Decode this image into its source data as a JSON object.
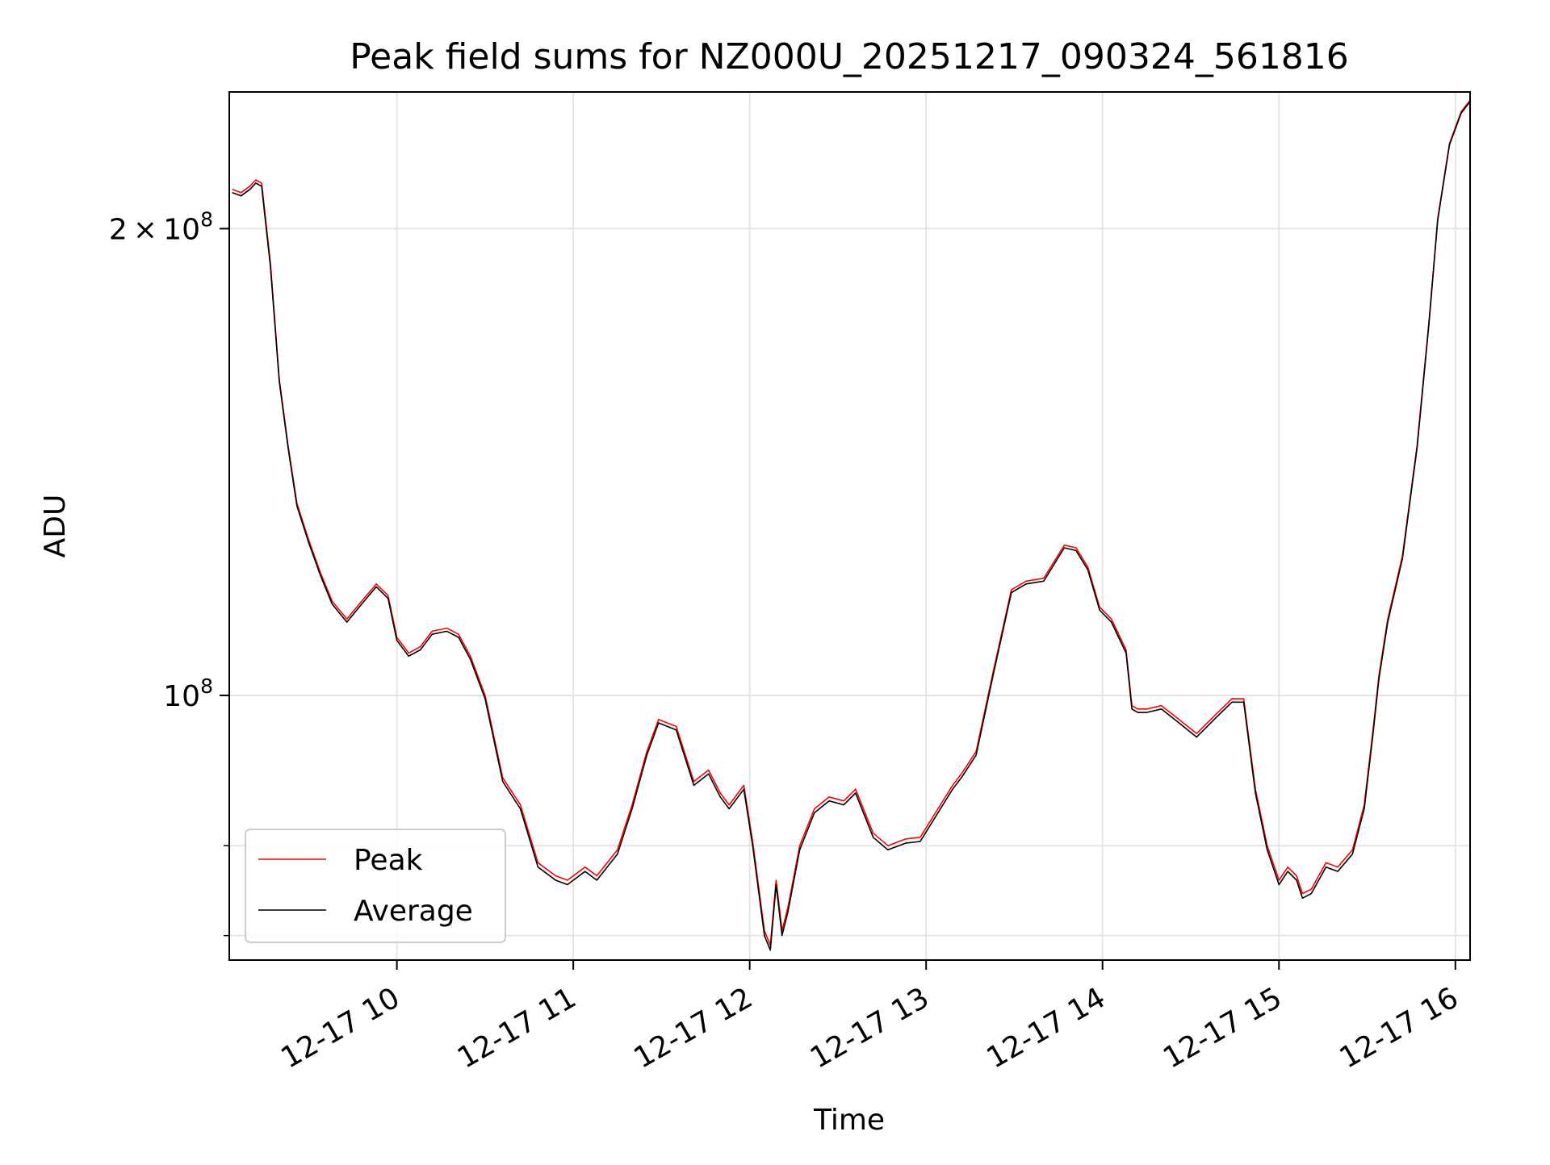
{
  "chart_data": {
    "type": "line",
    "title": "Peak field sums for NZ000U_20251217_090324_561816",
    "xlabel": "Time",
    "ylabel": "ADU",
    "yscale": "log",
    "ylim": [
      67500000,
      245000000
    ],
    "xlim": [
      "2025-12-17 09:03",
      "2025-12-17 16:05"
    ],
    "x_ticks": [
      {
        "value": "2025-12-17 10:00",
        "label": "12-17 10"
      },
      {
        "value": "2025-12-17 11:00",
        "label": "12-17 11"
      },
      {
        "value": "2025-12-17 12:00",
        "label": "12-17 12"
      },
      {
        "value": "2025-12-17 13:00",
        "label": "12-17 13"
      },
      {
        "value": "2025-12-17 14:00",
        "label": "12-17 14"
      },
      {
        "value": "2025-12-17 15:00",
        "label": "12-17 15"
      },
      {
        "value": "2025-12-17 16:00",
        "label": "12-17 16"
      }
    ],
    "y_major_ticks": [
      {
        "value": 100000000,
        "base": "10",
        "exp": "8",
        "label": "10^8"
      },
      {
        "value": 200000000,
        "mant": "2",
        "base": "10",
        "exp": "8",
        "label": "2×10^8"
      }
    ],
    "y_minor_ticks": [
      70000000,
      80000000,
      300000000
    ],
    "grid": true,
    "legend": {
      "position": "lower-left",
      "entries": [
        "Peak",
        "Average"
      ]
    },
    "series": [
      {
        "name": "Peak",
        "color": "#ff0000",
        "x": [
          "2025-12-17 09:04",
          "2025-12-17 09:07",
          "2025-12-17 09:10",
          "2025-12-17 09:12",
          "2025-12-17 09:14",
          "2025-12-17 09:17",
          "2025-12-17 09:20",
          "2025-12-17 09:23",
          "2025-12-17 09:26",
          "2025-12-17 09:30",
          "2025-12-17 09:34",
          "2025-12-17 09:38",
          "2025-12-17 09:43",
          "2025-12-17 09:48",
          "2025-12-17 09:53",
          "2025-12-17 09:57",
          "2025-12-17 10:00",
          "2025-12-17 10:04",
          "2025-12-17 10:08",
          "2025-12-17 10:12",
          "2025-12-17 10:17",
          "2025-12-17 10:21",
          "2025-12-17 10:25",
          "2025-12-17 10:30",
          "2025-12-17 10:36",
          "2025-12-17 10:42",
          "2025-12-17 10:48",
          "2025-12-17 10:54",
          "2025-12-17 10:58",
          "2025-12-17 11:04",
          "2025-12-17 11:08",
          "2025-12-17 11:15",
          "2025-12-17 11:20",
          "2025-12-17 11:25",
          "2025-12-17 11:29",
          "2025-12-17 11:35",
          "2025-12-17 11:41",
          "2025-12-17 11:46",
          "2025-12-17 11:50",
          "2025-12-17 11:53",
          "2025-12-17 11:58",
          "2025-12-17 12:01",
          "2025-12-17 12:05",
          "2025-12-17 12:07",
          "2025-12-17 12:09",
          "2025-12-17 12:11",
          "2025-12-17 12:13",
          "2025-12-17 12:17",
          "2025-12-17 12:22",
          "2025-12-17 12:27",
          "2025-12-17 12:32",
          "2025-12-17 12:36",
          "2025-12-17 12:42",
          "2025-12-17 12:47",
          "2025-12-17 12:53",
          "2025-12-17 12:58",
          "2025-12-17 13:04",
          "2025-12-17 13:09",
          "2025-12-17 13:12",
          "2025-12-17 13:17",
          "2025-12-17 13:23",
          "2025-12-17 13:29",
          "2025-12-17 13:34",
          "2025-12-17 13:40",
          "2025-12-17 13:47",
          "2025-12-17 13:51",
          "2025-12-17 13:55",
          "2025-12-17 13:59",
          "2025-12-17 14:03",
          "2025-12-17 14:08",
          "2025-12-17 14:10",
          "2025-12-17 14:12",
          "2025-12-17 14:15",
          "2025-12-17 14:20",
          "2025-12-17 14:26",
          "2025-12-17 14:32",
          "2025-12-17 14:38",
          "2025-12-17 14:44",
          "2025-12-17 14:48",
          "2025-12-17 14:52",
          "2025-12-17 14:56",
          "2025-12-17 15:00",
          "2025-12-17 15:03",
          "2025-12-17 15:06",
          "2025-12-17 15:08",
          "2025-12-17 15:11",
          "2025-12-17 15:16",
          "2025-12-17 15:20",
          "2025-12-17 15:25",
          "2025-12-17 15:29",
          "2025-12-17 15:32",
          "2025-12-17 15:34",
          "2025-12-17 15:37",
          "2025-12-17 15:42",
          "2025-12-17 15:47",
          "2025-12-17 15:51",
          "2025-12-17 15:54",
          "2025-12-17 15:58",
          "2025-12-17 16:02",
          "2025-12-17 16:05"
        ],
        "y": [
          212000000,
          211000000,
          213000000,
          215000000,
          214000000,
          190000000,
          160000000,
          145000000,
          133000000,
          126000000,
          120000000,
          115000000,
          112000000,
          115000000,
          118000000,
          116000000,
          109000000,
          106500000,
          107500000,
          110000000,
          110500000,
          109500000,
          106000000,
          100000000,
          88500000,
          85000000,
          78000000,
          76500000,
          76000000,
          77500000,
          76500000,
          79500000,
          85000000,
          92000000,
          96500000,
          95500000,
          88000000,
          89500000,
          86500000,
          85000000,
          87500000,
          80500000,
          70500000,
          69000000,
          76000000,
          70500000,
          73000000,
          80000000,
          84500000,
          86000000,
          85500000,
          87000000,
          81500000,
          80000000,
          80800000,
          81000000,
          84500000,
          87500000,
          89000000,
          92000000,
          104000000,
          117000000,
          118500000,
          119000000,
          125000000,
          124500000,
          121000000,
          114000000,
          112000000,
          107000000,
          98500000,
          98000000,
          98000000,
          98500000,
          96500000,
          94500000,
          97000000,
          99500000,
          99500000,
          87000000,
          80000000,
          76000000,
          77500000,
          76500000,
          74500000,
          75000000,
          78000000,
          77500000,
          79500000,
          85000000,
          95000000,
          103000000,
          112000000,
          123000000,
          145000000,
          174000000,
          203000000,
          227000000,
          238000000,
          242000000
        ]
      },
      {
        "name": "Average",
        "color": "#000000",
        "x": [
          "2025-12-17 09:04",
          "2025-12-17 09:07",
          "2025-12-17 09:10",
          "2025-12-17 09:12",
          "2025-12-17 09:14",
          "2025-12-17 09:17",
          "2025-12-17 09:20",
          "2025-12-17 09:23",
          "2025-12-17 09:26",
          "2025-12-17 09:30",
          "2025-12-17 09:34",
          "2025-12-17 09:38",
          "2025-12-17 09:43",
          "2025-12-17 09:48",
          "2025-12-17 09:53",
          "2025-12-17 09:57",
          "2025-12-17 10:00",
          "2025-12-17 10:04",
          "2025-12-17 10:08",
          "2025-12-17 10:12",
          "2025-12-17 10:17",
          "2025-12-17 10:21",
          "2025-12-17 10:25",
          "2025-12-17 10:30",
          "2025-12-17 10:36",
          "2025-12-17 10:42",
          "2025-12-17 10:48",
          "2025-12-17 10:54",
          "2025-12-17 10:58",
          "2025-12-17 11:04",
          "2025-12-17 11:08",
          "2025-12-17 11:15",
          "2025-12-17 11:20",
          "2025-12-17 11:25",
          "2025-12-17 11:29",
          "2025-12-17 11:35",
          "2025-12-17 11:41",
          "2025-12-17 11:46",
          "2025-12-17 11:50",
          "2025-12-17 11:53",
          "2025-12-17 11:58",
          "2025-12-17 12:01",
          "2025-12-17 12:05",
          "2025-12-17 12:07",
          "2025-12-17 12:09",
          "2025-12-17 12:11",
          "2025-12-17 12:13",
          "2025-12-17 12:17",
          "2025-12-17 12:22",
          "2025-12-17 12:27",
          "2025-12-17 12:32",
          "2025-12-17 12:36",
          "2025-12-17 12:42",
          "2025-12-17 12:47",
          "2025-12-17 12:53",
          "2025-12-17 12:58",
          "2025-12-17 13:04",
          "2025-12-17 13:09",
          "2025-12-17 13:12",
          "2025-12-17 13:17",
          "2025-12-17 13:23",
          "2025-12-17 13:29",
          "2025-12-17 13:34",
          "2025-12-17 13:40",
          "2025-12-17 13:47",
          "2025-12-17 13:51",
          "2025-12-17 13:55",
          "2025-12-17 13:59",
          "2025-12-17 14:03",
          "2025-12-17 14:08",
          "2025-12-17 14:10",
          "2025-12-17 14:12",
          "2025-12-17 14:15",
          "2025-12-17 14:20",
          "2025-12-17 14:26",
          "2025-12-17 14:32",
          "2025-12-17 14:38",
          "2025-12-17 14:44",
          "2025-12-17 14:48",
          "2025-12-17 14:52",
          "2025-12-17 14:56",
          "2025-12-17 15:00",
          "2025-12-17 15:03",
          "2025-12-17 15:06",
          "2025-12-17 15:08",
          "2025-12-17 15:11",
          "2025-12-17 15:16",
          "2025-12-17 15:20",
          "2025-12-17 15:25",
          "2025-12-17 15:29",
          "2025-12-17 15:32",
          "2025-12-17 15:34",
          "2025-12-17 15:37",
          "2025-12-17 15:42",
          "2025-12-17 15:47",
          "2025-12-17 15:51",
          "2025-12-17 15:54",
          "2025-12-17 15:58",
          "2025-12-17 16:02",
          "2025-12-17 16:05"
        ],
        "y": [
          211000000,
          210000000,
          212000000,
          214000000,
          213000000,
          189000000,
          159500000,
          144500000,
          132500000,
          125500000,
          119500000,
          114500000,
          111500000,
          114500000,
          117500000,
          115500000,
          108500000,
          106000000,
          107000000,
          109500000,
          110000000,
          109000000,
          105500000,
          99500000,
          88000000,
          84500000,
          77500000,
          76000000,
          75500000,
          77000000,
          76000000,
          79000000,
          84500000,
          91500000,
          96000000,
          95000000,
          87500000,
          89000000,
          86000000,
          84500000,
          87000000,
          80000000,
          70000000,
          68500000,
          75500000,
          70000000,
          72500000,
          79500000,
          84000000,
          85500000,
          85000000,
          86500000,
          81000000,
          79500000,
          80300000,
          80500000,
          84000000,
          87000000,
          88500000,
          91500000,
          103500000,
          116500000,
          118000000,
          118500000,
          124500000,
          124000000,
          120500000,
          113500000,
          111500000,
          106500000,
          98000000,
          97500000,
          97500000,
          98000000,
          96000000,
          94000000,
          96500000,
          99000000,
          99000000,
          86500000,
          79500000,
          75500000,
          77000000,
          76000000,
          74000000,
          74500000,
          77500000,
          77000000,
          79000000,
          84500000,
          94500000,
          102500000,
          111500000,
          122500000,
          144500000,
          173500000,
          202500000,
          226500000,
          237500000,
          241500000
        ]
      }
    ]
  }
}
